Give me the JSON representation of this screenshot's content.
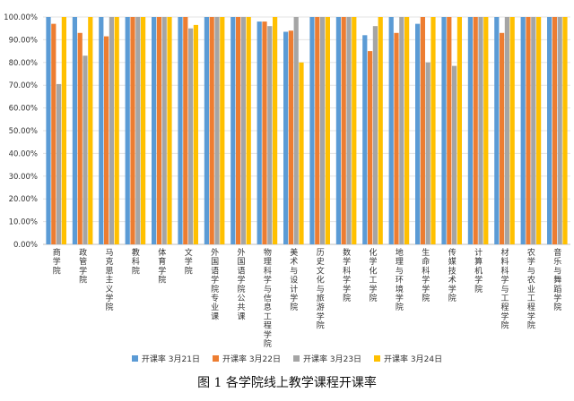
{
  "caption": "图 1  各学院线上教学课程开课率",
  "chart_data": {
    "type": "bar",
    "title": "",
    "xlabel": "",
    "ylabel": "",
    "ylim": [
      0,
      100
    ],
    "yticks": [
      "0.00%",
      "10.00%",
      "20.00%",
      "30.00%",
      "40.00%",
      "50.00%",
      "60.00%",
      "70.00%",
      "80.00%",
      "90.00%",
      "100.00%"
    ],
    "grid": true,
    "legend_position": "bottom",
    "categories": [
      "商学院",
      "政管学院",
      "马克思主义学院",
      "教科院",
      "体育学院",
      "文学院",
      "外国语学院专业课",
      "外国语学院公共课",
      "物理科学与信息工程学院",
      "美术与设计学院",
      "历史文化与旅游学院",
      "数学科学学院",
      "化学化工学院",
      "地理与环境学院",
      "生命科学学院",
      "传媒技术学院",
      "计算机学院",
      "材料科学与工程学院",
      "农学与农业工程学院",
      "音乐与舞蹈学院"
    ],
    "series": [
      {
        "name": "开课率 3月21日",
        "color": "#5b9bd5",
        "values": [
          100,
          100,
          100,
          100,
          100,
          100,
          100,
          100,
          98,
          93.5,
          100,
          100,
          92,
          100,
          97,
          100,
          100,
          100,
          100,
          100
        ]
      },
      {
        "name": "开课率 3月22日",
        "color": "#ed7d31",
        "values": [
          97,
          93,
          91.5,
          100,
          100,
          100,
          100,
          100,
          98,
          94,
          100,
          100,
          85,
          93,
          100,
          100,
          100,
          93,
          100,
          100
        ]
      },
      {
        "name": "开课率 3月23日",
        "color": "#a5a5a5",
        "values": [
          70.5,
          83,
          100,
          100,
          100,
          95,
          100,
          100,
          96,
          100,
          100,
          100,
          96,
          100,
          80,
          78.5,
          100,
          100,
          100,
          100
        ]
      },
      {
        "name": "开课率 3月24日",
        "color": "#ffc000",
        "values": [
          100,
          100,
          100,
          100,
          100,
          96.5,
          100,
          100,
          100,
          80,
          100,
          100,
          100,
          100,
          100,
          100,
          100,
          100,
          100,
          100
        ]
      }
    ]
  }
}
